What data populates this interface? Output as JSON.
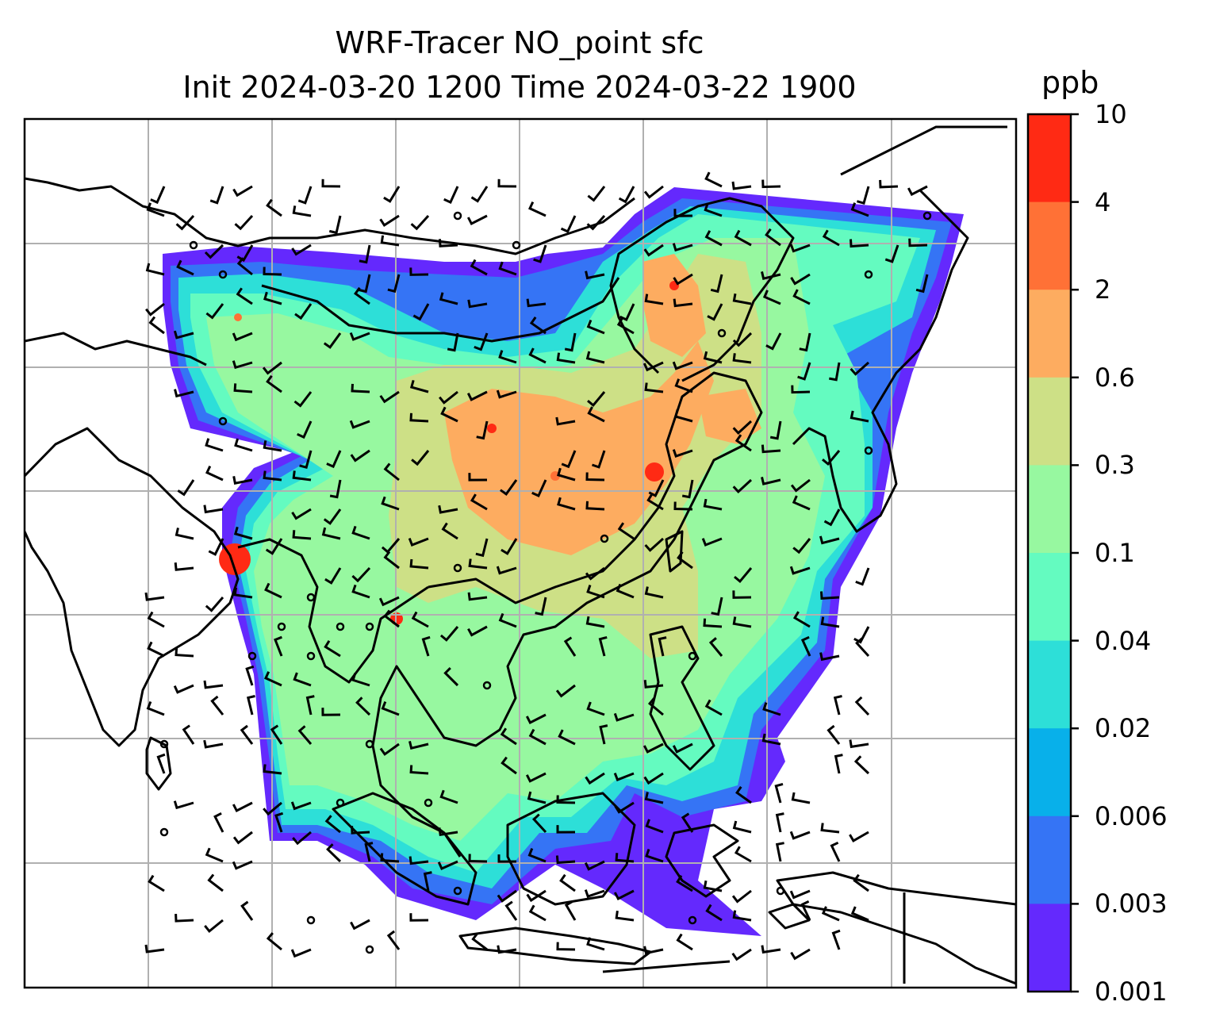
{
  "title": {
    "line1": "WRF-Tracer NO_point sfc",
    "line2": "Init 2024-03-20 1200 Time 2024-03-22 1900"
  },
  "colorbar": {
    "unit": "ppb",
    "levels": [
      "10",
      "4",
      "2",
      "0.6",
      "0.3",
      "0.1",
      "0.04",
      "0.02",
      "0.006",
      "0.003",
      "0.001"
    ],
    "colors": [
      "#ff2a14",
      "#ff7136",
      "#fdac60",
      "#cde086",
      "#97f8a0",
      "#64fbc0",
      "#2ddfd8",
      "#08b0ea",
      "#3574f5",
      "#6429fd"
    ]
  },
  "map": {
    "field": "NO_point tracer concentration",
    "wind_barbs": true,
    "grid": "on",
    "region": "South / Southeast / East Asia",
    "colors": {
      "coastline": "#000000",
      "gridline": "#b0b0b0",
      "background": "#ffffff"
    }
  }
}
